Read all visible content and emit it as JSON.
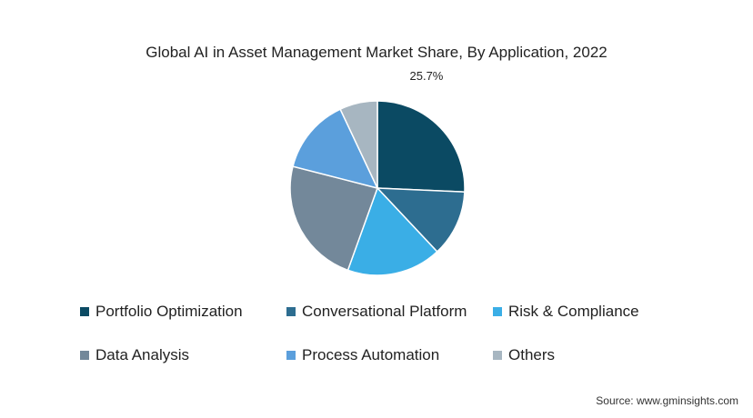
{
  "chart_data": {
    "type": "pie",
    "title": "Global AI in Asset Management Market Share, By Application, 2022",
    "slices": [
      {
        "name": "Portfolio Optimization",
        "value": 25.7,
        "color": "#0b4a63",
        "label": "25.7%"
      },
      {
        "name": "Conversational Platform",
        "value": 12.3,
        "color": "#2d6d90",
        "color_note": "",
        "label": ""
      },
      {
        "name": "Risk & Compliance",
        "value": 17.5,
        "color": "#3aaee6",
        "label": ""
      },
      {
        "name": "Data Analysis",
        "value": 23.5,
        "color": "#73889a",
        "label": ""
      },
      {
        "name": "Process Automation",
        "value": 14.0,
        "color": "#5b9fdc",
        "label": ""
      },
      {
        "name": "Others",
        "value": 7.0,
        "color": "#a7b6c1",
        "label": ""
      }
    ],
    "legend_position": "bottom"
  },
  "source": "Source: www.gminsights.com"
}
